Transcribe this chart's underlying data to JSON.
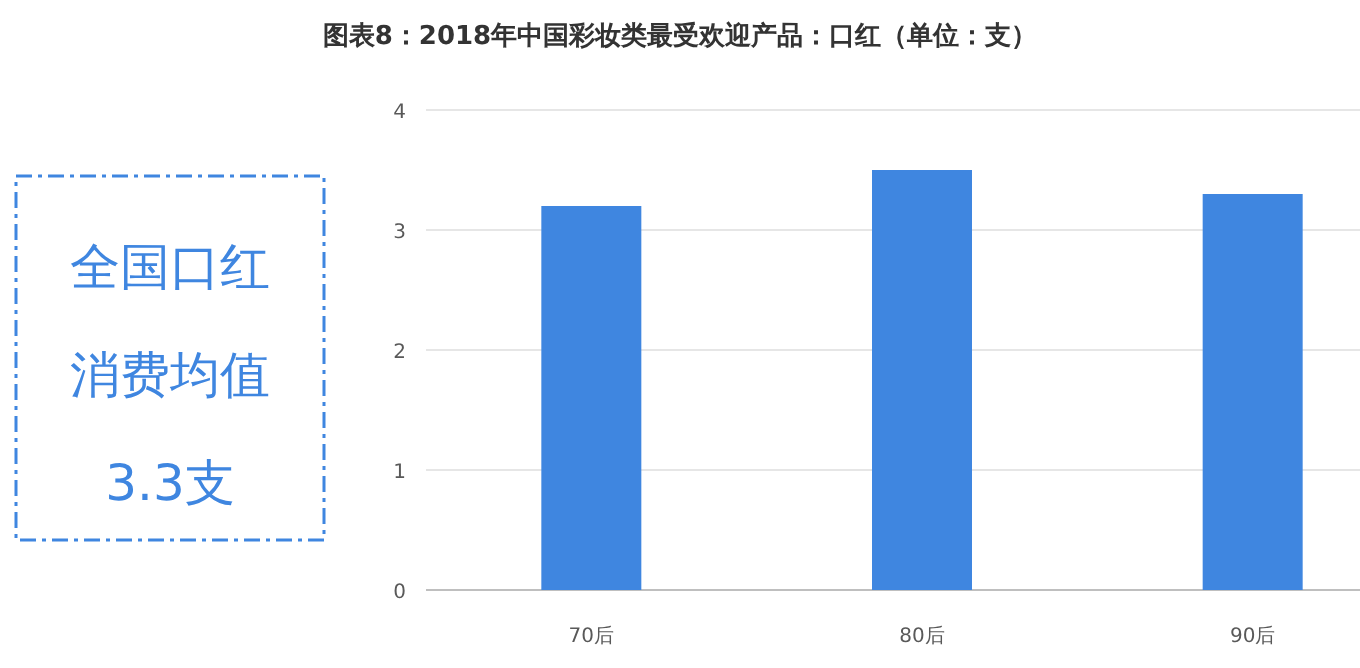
{
  "chart_data": {
    "type": "bar",
    "title": "图表8：2018年中国彩妆类最受欢迎产品：口红（单位：支）",
    "categories": [
      "70后",
      "80后",
      "90后"
    ],
    "values": [
      3.2,
      3.5,
      3.3
    ],
    "color": "#3f86e0",
    "ylim": [
      0,
      4
    ],
    "yticks": [
      0,
      1,
      2,
      3,
      4
    ],
    "grid": "y",
    "annotations": [
      "全国口红",
      "消费均值",
      "3.3支"
    ]
  }
}
